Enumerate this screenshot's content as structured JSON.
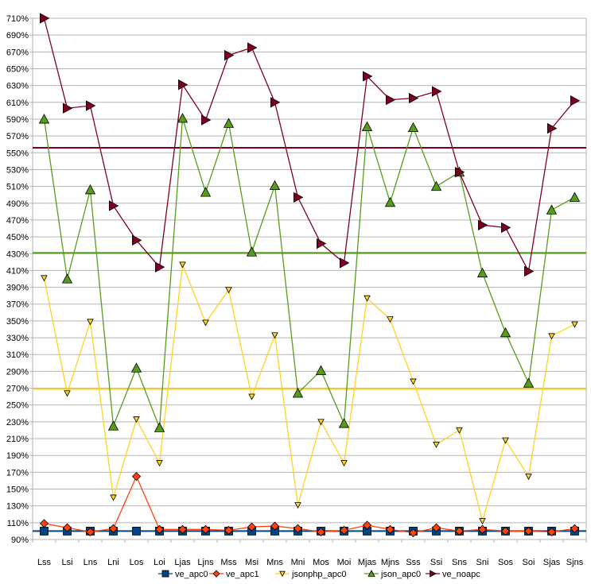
{
  "chart_data": {
    "type": "line",
    "title": "",
    "xlabel": "",
    "ylabel": "",
    "ylim": [
      90,
      710
    ],
    "ytick_step": 20,
    "ytick_suffix": "%",
    "grid": true,
    "legend_position": "bottom",
    "categories": [
      "Lss",
      "Lsi",
      "Lns",
      "Lni",
      "Los",
      "Loi",
      "Ljas",
      "Ljns",
      "Mss",
      "Msi",
      "Mns",
      "Mni",
      "Mos",
      "Moi",
      "Mjas",
      "Mjns",
      "Sss",
      "Ssi",
      "Sns",
      "Sni",
      "Sos",
      "Soi",
      "Sjas",
      "Sjns"
    ],
    "series": [
      {
        "name": "ve_apc0",
        "color": "#004586",
        "marker": "square",
        "values": [
          100,
          100,
          100,
          100,
          100,
          100,
          100,
          100,
          100,
          100,
          100,
          100,
          100,
          100,
          100,
          100,
          100,
          100,
          100,
          100,
          100,
          100,
          100,
          100
        ]
      },
      {
        "name": "ve_apc1",
        "color": "#ff420e",
        "marker": "diamond",
        "values": [
          109,
          104,
          99,
          103,
          165,
          102,
          102,
          102,
          101,
          105,
          106,
          103,
          99,
          101,
          107,
          102,
          98,
          104,
          100,
          102,
          100,
          100,
          99,
          103
        ]
      },
      {
        "name": "jsonphp_apc0",
        "color": "#ffd320",
        "marker": "down-triangle",
        "values": [
          401,
          264,
          349,
          140,
          233,
          181,
          417,
          348,
          387,
          260,
          333,
          131,
          230,
          181,
          377,
          352,
          278,
          203,
          220,
          112,
          208,
          165,
          332,
          346
        ]
      },
      {
        "name": "json_apc0",
        "color": "#579d1c",
        "marker": "up-triangle",
        "values": [
          590,
          400,
          506,
          225,
          294,
          223,
          591,
          503,
          585,
          432,
          511,
          264,
          291,
          228,
          581,
          491,
          580,
          510,
          527,
          407,
          336,
          276,
          482,
          497
        ]
      },
      {
        "name": "ve_noapc",
        "color": "#7e0021",
        "marker": "right-triangle",
        "values": [
          710,
          603,
          606,
          487,
          446,
          414,
          631,
          589,
          666,
          675,
          610,
          497,
          442,
          419,
          641,
          613,
          615,
          623,
          527,
          464,
          461,
          409,
          579,
          612
        ]
      }
    ],
    "reference_lines": [
      {
        "value": 556,
        "color": "#7e0021"
      },
      {
        "value": 431,
        "color": "#579d1c"
      },
      {
        "value": 269,
        "color": "#ffd320"
      },
      {
        "value": 100,
        "color": "#004586"
      }
    ]
  }
}
